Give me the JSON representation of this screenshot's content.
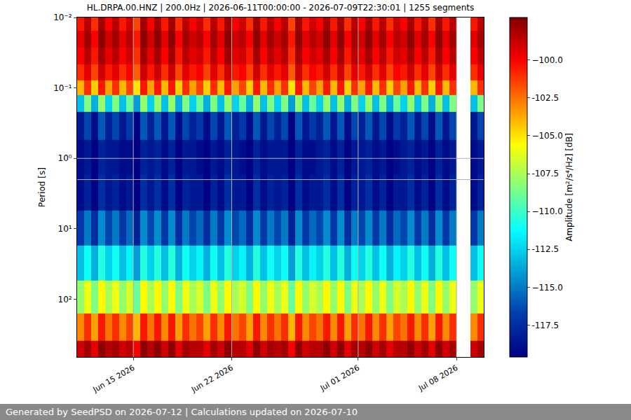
{
  "chart_data": {
    "type": "heatmap",
    "title": "HL.DRPA.00.HNZ | 200.0Hz | 2026-06-11T00:00:00 - 2026-07-09T22:30:01 | 1255 segments",
    "y_label": "Period [s]",
    "colorbar_label": "Amplitude [m²/s⁴/Hz] [dB]",
    "color": "Jet",
    "log": "y",
    "grid": true,
    "x": [
      "2026-06-11 06:00",
      "2026-06-11 18:00",
      "2026-06-12 06:00",
      "2026-06-12 18:00",
      "2026-06-13 06:00",
      "2026-06-13 18:00",
      "2026-06-14 06:00",
      "2026-06-14 18:00",
      "2026-06-15 06:00",
      "2026-06-15 18:00",
      "2026-06-16 06:00",
      "2026-06-16 18:00",
      "2026-06-17 06:00",
      "2026-06-17 18:00",
      "2026-06-18 06:00",
      "2026-06-18 18:00",
      "2026-06-19 06:00",
      "2026-06-19 18:00",
      "2026-06-20 06:00",
      "2026-06-20 18:00",
      "2026-06-21 06:00",
      "2026-06-21 18:00",
      "2026-06-22 06:00",
      "2026-06-22 18:00",
      "2026-06-23 06:00",
      "2026-06-23 18:00",
      "2026-06-24 06:00",
      "2026-06-24 18:00",
      "2026-06-25 06:00",
      "2026-06-25 18:00",
      "2026-06-26 06:00",
      "2026-06-26 18:00",
      "2026-06-27 06:00",
      "2026-06-27 18:00",
      "2026-06-28 06:00",
      "2026-06-28 18:00",
      "2026-06-29 06:00",
      "2026-06-29 18:00",
      "2026-06-30 06:00",
      "2026-06-30 18:00",
      "2026-07-01 06:00",
      "2026-07-01 18:00",
      "2026-07-02 06:00",
      "2026-07-02 18:00",
      "2026-07-03 06:00",
      "2026-07-03 18:00",
      "2026-07-04 06:00",
      "2026-07-04 18:00",
      "2026-07-05 06:00",
      "2026-07-05 18:00",
      "2026-07-06 06:00",
      "2026-07-06 18:00",
      "2026-07-07 06:00",
      "2026-07-07 18:00",
      "2026-07-08 06:00",
      "2026-07-08 18:00",
      "2026-07-09 06:00",
      "2026-07-09 18:00"
    ],
    "y": [
      0.012,
      0.02,
      0.035,
      0.06,
      0.1,
      0.16,
      0.3,
      1,
      3,
      10,
      30,
      100,
      250,
      600
    ],
    "z": [
      [
        -100.5,
        -98.5,
        -101,
        -98,
        -100,
        -98.5,
        -100.5,
        -99,
        -101.5,
        -98,
        -100,
        -98,
        -100.5,
        -98,
        -101,
        -98.5,
        -100,
        -99,
        -101,
        -98.5,
        -100.5,
        -98,
        -100,
        -99,
        -101,
        -98,
        -100.5,
        -98.5,
        -100,
        -98.5,
        -101.5,
        -98,
        -100.5,
        -99,
        -100,
        -98,
        -100.5,
        -98,
        -101,
        -98.5,
        -100,
        -98,
        -100.5,
        -98.5,
        -101,
        -99,
        -100,
        -98,
        -100.5,
        -98.5,
        -101,
        -98,
        -100.5,
        -98.5,
        null,
        null,
        -100.5,
        -98.5
      ],
      [
        -99.5,
        -98,
        -100,
        -97.5,
        -99,
        -98,
        -99.5,
        -98.5,
        -100.5,
        -97.5,
        -99,
        -97.5,
        -99.5,
        -97.5,
        -100,
        -98,
        -99,
        -98.5,
        -100,
        -98,
        -99.5,
        -97.5,
        -99,
        -98.5,
        -100,
        -97.5,
        -99.5,
        -98,
        -99,
        -98,
        -100.5,
        -97.5,
        -99.5,
        -98.5,
        -99,
        -97.5,
        -99.5,
        -97.5,
        -100,
        -98,
        -99,
        -97.5,
        -99.5,
        -98,
        -100,
        -98.5,
        -99,
        -97.5,
        -99.5,
        -98,
        -100,
        -97.5,
        -99.5,
        -98,
        null,
        null,
        -99.5,
        -98
      ],
      [
        -100,
        -98.5,
        -100.5,
        -98,
        -99.5,
        -98.5,
        -100,
        -99,
        -101,
        -98,
        -99.5,
        -98,
        -100,
        -98,
        -100.5,
        -98.5,
        -99.5,
        -99,
        -100.5,
        -98.5,
        -100,
        -98,
        -99.5,
        -99,
        -100.5,
        -98,
        -100,
        -98.5,
        -99.5,
        -98.5,
        -101,
        -98,
        -100,
        -99,
        -99.5,
        -98,
        -100,
        -98,
        -100.5,
        -98.5,
        -99.5,
        -98,
        -100,
        -98.5,
        -100.5,
        -99,
        -99.5,
        -98,
        -100,
        -98.5,
        -100.5,
        -98,
        -100,
        -98.5,
        null,
        null,
        -100,
        -98.5
      ],
      [
        -101,
        -99.5,
        -101.5,
        -99,
        -100.5,
        -99.5,
        -101,
        -100,
        -102,
        -99,
        -100.5,
        -99,
        -101,
        -99,
        -101.5,
        -99.5,
        -100.5,
        -100,
        -101.5,
        -99.5,
        -101,
        -99,
        -100.5,
        -100,
        -101.5,
        -99,
        -101,
        -99.5,
        -100.5,
        -99.5,
        -102,
        -99,
        -101,
        -100,
        -100.5,
        -99,
        -101,
        -99,
        -101.5,
        -99.5,
        -100.5,
        -99,
        -101,
        -99.5,
        -101.5,
        -100,
        -100.5,
        -99,
        -101,
        -99.5,
        -101.5,
        -99,
        -101,
        -99.5,
        null,
        null,
        -101,
        -99.5
      ],
      [
        -104,
        -101,
        -104.5,
        -100.5,
        -103.5,
        -101,
        -104,
        -101.5,
        -105,
        -100.5,
        -103.5,
        -100.5,
        -104,
        -100.5,
        -104.5,
        -101,
        -103.5,
        -101.5,
        -104.5,
        -101,
        -104,
        -100.5,
        -103.5,
        -101.5,
        -104.5,
        -100.5,
        -104,
        -101,
        -103.5,
        -101,
        -105,
        -100.5,
        -104,
        -101.5,
        -103.5,
        -100.5,
        -104,
        -100.5,
        -104.5,
        -101,
        -103.5,
        -100.5,
        -104,
        -101,
        -104.5,
        -101.5,
        -103.5,
        -100.5,
        -104,
        -101,
        -104.5,
        -100.5,
        -104,
        -101,
        null,
        null,
        -104,
        -101
      ],
      [
        -113,
        -108.5,
        -113.5,
        -108,
        -112.5,
        -108.5,
        -113,
        -109,
        -114,
        -108,
        -112.5,
        -108,
        -113,
        -108,
        -113.5,
        -108.5,
        -112.5,
        -109,
        -113.5,
        -108.5,
        -113,
        -108,
        -112.5,
        -109,
        -113.5,
        -108,
        -113,
        -108.5,
        -112.5,
        -108.5,
        -114,
        -108,
        -113,
        -109,
        -112.5,
        -108,
        -113,
        -108,
        -113.5,
        -108.5,
        -112.5,
        -108,
        -113,
        -108.5,
        -113.5,
        -109,
        -112.5,
        -108,
        -113,
        -108.5,
        -113.5,
        -108,
        -113,
        -108.5,
        null,
        null,
        -113,
        -108.5
      ],
      [
        -118.5,
        -116.5,
        -119,
        -116,
        -118,
        -116.5,
        -118.5,
        -117,
        -119.5,
        -116,
        -118,
        -116,
        -118.5,
        -116,
        -119,
        -116.5,
        -118,
        -117,
        -119,
        -116.5,
        -118.5,
        -116,
        -118,
        -117,
        -119,
        -116,
        -118.5,
        -116.5,
        -118,
        -116.5,
        -119.5,
        -116,
        -118.5,
        -117,
        -118,
        -116,
        -118.5,
        -116,
        -119,
        -116.5,
        -118,
        -116,
        -118.5,
        -116.5,
        -119,
        -117,
        -118,
        -116,
        -118.5,
        -116.5,
        -119,
        -116,
        -118.5,
        -116.5,
        null,
        null,
        -118.5,
        -116.5
      ],
      [
        -119,
        -118.5,
        -119.5,
        -118,
        -118.5,
        -118.5,
        -119,
        -119,
        -120,
        -118,
        -118.5,
        -118,
        -119,
        -118,
        -119.5,
        -118.5,
        -118.5,
        -119,
        -119.5,
        -118.5,
        -119,
        -118,
        -118.5,
        -119,
        -119.5,
        -118,
        -119,
        -118.5,
        -118.5,
        -118.5,
        -120,
        -118,
        -119,
        -119,
        -118.5,
        -118,
        -119,
        -118,
        -119.5,
        -118.5,
        -118.5,
        -118,
        -119,
        -118.5,
        -119.5,
        -119,
        -118.5,
        -118,
        -119,
        -118.5,
        -119.5,
        -118,
        -119,
        -118.5,
        null,
        null,
        -119,
        -118.5
      ],
      [
        -119,
        -118,
        -119.5,
        -117.5,
        -118.5,
        -118,
        -119,
        -118.5,
        -120,
        -117.5,
        -118.5,
        -117.5,
        -119,
        -117.5,
        -119.5,
        -118,
        -118.5,
        -118.5,
        -119.5,
        -118,
        -119,
        -117.5,
        -118.5,
        -118.5,
        -119.5,
        -117.5,
        -119,
        -118,
        -118.5,
        -118,
        -120,
        -117.5,
        -119,
        -118.5,
        -118.5,
        -117.5,
        -119,
        -117.5,
        -119.5,
        -118,
        -118.5,
        -117.5,
        -119,
        -118,
        -119.5,
        -118.5,
        -118.5,
        -117.5,
        -119,
        -118,
        -119.5,
        -117.5,
        -119,
        -118,
        null,
        null,
        -119,
        -118
      ],
      [
        -117,
        -115,
        -117.5,
        -114.5,
        -116.5,
        -115,
        -117,
        -115.5,
        -118,
        -114.5,
        -116.5,
        -114.5,
        -117,
        -114.5,
        -117.5,
        -115,
        -116.5,
        -115.5,
        -117.5,
        -115,
        -117,
        -114.5,
        -116.5,
        -115.5,
        -117.5,
        -114.5,
        -117,
        -115,
        -116.5,
        -115,
        -118,
        -114.5,
        -117,
        -115.5,
        -116.5,
        -114.5,
        -117,
        -114.5,
        -117.5,
        -115,
        -116.5,
        -114.5,
        -117,
        -115,
        -117.5,
        -115.5,
        -116.5,
        -114.5,
        -117,
        -115,
        -117.5,
        -114.5,
        -117,
        -115,
        null,
        null,
        -117,
        -115
      ],
      [
        -113,
        -111,
        -113.5,
        -110.5,
        -112.5,
        -111,
        -113,
        -111.5,
        -114,
        -110.5,
        -112.5,
        -110.5,
        -113,
        -110.5,
        -113.5,
        -111,
        -112.5,
        -111.5,
        -113.5,
        -111,
        -113,
        -110.5,
        -112.5,
        -111.5,
        -113.5,
        -110.5,
        -113,
        -111,
        -112.5,
        -111,
        -114,
        -110.5,
        -113,
        -111.5,
        -112.5,
        -110.5,
        -113,
        -110.5,
        -113.5,
        -111,
        -112.5,
        -110.5,
        -113,
        -111,
        -113.5,
        -111.5,
        -112.5,
        -110.5,
        -113,
        -111,
        -113.5,
        -110.5,
        -113,
        -111,
        null,
        null,
        -113,
        -111
      ],
      [
        -108,
        -106,
        -108.5,
        -105.5,
        -107.5,
        -106,
        -108,
        -106.5,
        -109,
        -105.5,
        -107.5,
        -105.5,
        -108,
        -105.5,
        -108.5,
        -106,
        -107.5,
        -106.5,
        -108.5,
        -106,
        -108,
        -105.5,
        -107.5,
        -106.5,
        -108.5,
        -105.5,
        -108,
        -106,
        -107.5,
        -106,
        -109,
        -105.5,
        -108,
        -106.5,
        -107.5,
        -105.5,
        -108,
        -105.5,
        -108.5,
        -106,
        -107.5,
        -105.5,
        -108,
        -106,
        -108.5,
        -106.5,
        -107.5,
        -105.5,
        -108,
        -106,
        -108.5,
        -105.5,
        -108,
        -106,
        null,
        null,
        -108,
        -106
      ],
      [
        -103,
        -101,
        -103.5,
        -100.5,
        -102.5,
        -101,
        -103,
        -101.5,
        -104,
        -100.5,
        -102.5,
        -100.5,
        -103,
        -100.5,
        -103.5,
        -101,
        -102.5,
        -101.5,
        -103.5,
        -101,
        -103,
        -100.5,
        -102.5,
        -101.5,
        -103.5,
        -100.5,
        -103,
        -101,
        -102.5,
        -101,
        -104,
        -100.5,
        -103,
        -101.5,
        -102.5,
        -100.5,
        -103,
        -100.5,
        -103.5,
        -101,
        -102.5,
        -100.5,
        -103,
        -101,
        -103.5,
        -101.5,
        -102.5,
        -100.5,
        -103,
        -101,
        -103.5,
        -100.5,
        -103,
        -101,
        null,
        null,
        -103,
        -101
      ],
      [
        -99,
        -98,
        -99.5,
        -97.5,
        -98.5,
        -98,
        -99,
        -98.5,
        -100,
        -97.5,
        -98.5,
        -97.5,
        -99,
        -97.5,
        -99.5,
        -98,
        -98.5,
        -98.5,
        -99.5,
        -98,
        -99,
        -97.5,
        -98.5,
        -98.5,
        -99.5,
        -97.5,
        -99,
        -98,
        -98.5,
        -98,
        -100,
        -97.5,
        -99,
        -98.5,
        -98.5,
        -97.5,
        -99,
        -97.5,
        -99.5,
        -98,
        -98.5,
        -97.5,
        -99,
        -98,
        -99.5,
        -98.5,
        -98.5,
        -97.5,
        -99,
        -98,
        -99.5,
        -97.5,
        -99,
        -98,
        null,
        null,
        -99,
        -98
      ]
    ],
    "xlim": [
      "2026-06-11 00:00:00",
      "2026-07-09 22:30:01"
    ],
    "xticks": [
      {
        "value": "2026-06-15",
        "label": "Jun 15 2026"
      },
      {
        "value": "2026-06-22",
        "label": "Jun 22 2026"
      },
      {
        "value": "2026-07-01",
        "label": "Jul 01 2026"
      },
      {
        "value": "2026-07-08",
        "label": "Jul 08 2026"
      }
    ],
    "ylim": [
      0.01,
      660
    ],
    "yticks": [
      {
        "value": 0.01,
        "label": "10⁻²"
      },
      {
        "value": 0.1,
        "label": "10⁻¹"
      },
      {
        "value": 1,
        "label": "10⁰"
      },
      {
        "value": 10,
        "label": "10¹"
      },
      {
        "value": 100,
        "label": "10²"
      }
    ],
    "zlim": [
      -119.6,
      -97.2
    ],
    "zticks": [
      -117.5,
      {
        "value": -115,
        "label": "−115.0"
      },
      -112.5,
      {
        "value": -110,
        "label": "−110.0"
      },
      -107.5,
      {
        "value": -105,
        "label": "−105.0"
      },
      -102.5,
      {
        "value": -100,
        "label": "−100.0"
      }
    ]
  },
  "footer": "Generated by SeedPSD on 2026-07-12 | Calculations updated on 2026-07-10"
}
